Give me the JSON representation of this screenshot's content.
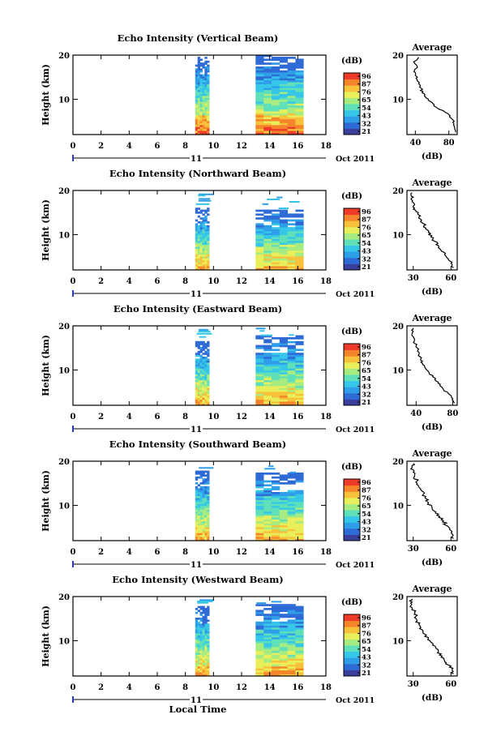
{
  "colorbar": {
    "unit_label": "(dB)",
    "palette": [
      "#3a3f9c",
      "#2f6bd6",
      "#2e9ee8",
      "#36c7e8",
      "#5fe0b8",
      "#a6ec80",
      "#e9ef5a",
      "#f7c13a",
      "#f5852a",
      "#ef3b2a"
    ]
  },
  "x_axis": {
    "ticks": [
      "0",
      "2",
      "4",
      "6",
      "8",
      "10",
      "12",
      "14",
      "16",
      "18"
    ],
    "date_label": "11",
    "month_label": "Oct 2011",
    "xlabel": "Local Time",
    "xlim": [
      0,
      18
    ]
  },
  "avg_panel_title": "Average",
  "avg_xlabel": "(dB)",
  "chart_data": [
    {
      "type": "heatmap",
      "title": "Echo Intensity (Vertical Beam)",
      "ylabel": "Height (km)",
      "yticks": [
        "10",
        "20"
      ],
      "ylim": [
        2,
        20
      ],
      "colorbar_ticks": [
        "96",
        "87",
        "76",
        "65",
        "54",
        "43",
        "32",
        "21"
      ],
      "blocks": [
        {
          "x_start": 8.7,
          "x_end": 9.7,
          "top_km": 19.5
        },
        {
          "x_start": 13.0,
          "x_end": 16.4,
          "top_km": 19.8
        }
      ],
      "average": {
        "xticks": [
          "40",
          "80"
        ],
        "xlim": [
          30,
          90
        ],
        "profile": [
          [
            88,
            2.5
          ],
          [
            87,
            3.5
          ],
          [
            86,
            4.5
          ],
          [
            84,
            5.5
          ],
          [
            80,
            6.5
          ],
          [
            72,
            7.5
          ],
          [
            62,
            8.5
          ],
          [
            58,
            9.5
          ],
          [
            52,
            10.5
          ],
          [
            48,
            11.5
          ],
          [
            47,
            12.5
          ],
          [
            44,
            13.5
          ],
          [
            42,
            14.5
          ],
          [
            40,
            15.5
          ],
          [
            39,
            16.5
          ],
          [
            42,
            17.5
          ],
          [
            38,
            18.5
          ],
          [
            44,
            19.5
          ]
        ]
      }
    },
    {
      "type": "heatmap",
      "title": "Echo Intensity (Northward Beam)",
      "ylabel": "Height (km)",
      "yticks": [
        "10",
        "20"
      ],
      "ylim": [
        2,
        20
      ],
      "colorbar_ticks": [
        "96",
        "87",
        "76",
        "65",
        "54",
        "43",
        "32",
        "21"
      ],
      "blocks": [
        {
          "x_start": 8.7,
          "x_end": 9.7,
          "top_km": 16.0
        },
        {
          "x_start": 13.0,
          "x_end": 16.4,
          "top_km": 15.5
        }
      ],
      "average": {
        "xticks": [
          "30",
          "60"
        ],
        "xlim": [
          25,
          65
        ],
        "profile": [
          [
            62,
            2.5
          ],
          [
            60,
            3.5
          ],
          [
            58,
            4.5
          ],
          [
            55,
            5.5
          ],
          [
            52,
            6.5
          ],
          [
            50,
            7.5
          ],
          [
            47,
            8.5
          ],
          [
            44,
            9.5
          ],
          [
            42,
            10.5
          ],
          [
            40,
            11.5
          ],
          [
            38,
            12.5
          ],
          [
            36,
            13.5
          ],
          [
            34,
            14.5
          ],
          [
            32,
            15.5
          ],
          [
            30,
            16.5
          ],
          [
            29,
            17.5
          ],
          [
            30,
            18.5
          ],
          [
            29,
            19.5
          ]
        ]
      }
    },
    {
      "type": "heatmap",
      "title": "Echo Intensity (Eastward Beam)",
      "ylabel": "Height (km)",
      "yticks": [
        "10",
        "20"
      ],
      "ylim": [
        2,
        20
      ],
      "colorbar_ticks": [
        "96",
        "87",
        "76",
        "65",
        "54",
        "43",
        "32",
        "21"
      ],
      "blocks": [
        {
          "x_start": 8.7,
          "x_end": 9.7,
          "top_km": 16.5
        },
        {
          "x_start": 13.0,
          "x_end": 16.4,
          "top_km": 17.5
        }
      ],
      "average": {
        "xticks": [
          "40",
          "80"
        ],
        "xlim": [
          30,
          85
        ],
        "profile": [
          [
            82,
            2.5
          ],
          [
            80,
            3.5
          ],
          [
            76,
            4.5
          ],
          [
            70,
            5.5
          ],
          [
            66,
            6.5
          ],
          [
            62,
            7.5
          ],
          [
            58,
            8.5
          ],
          [
            54,
            9.5
          ],
          [
            50,
            10.5
          ],
          [
            47,
            11.5
          ],
          [
            45,
            12.5
          ],
          [
            43,
            13.5
          ],
          [
            42,
            14.5
          ],
          [
            40,
            15.5
          ],
          [
            38,
            16.5
          ],
          [
            37,
            17.5
          ],
          [
            36,
            18.5
          ],
          [
            37,
            19.5
          ]
        ]
      }
    },
    {
      "type": "heatmap",
      "title": "Echo Intensity (Southward Beam)",
      "ylabel": "Height (km)",
      "yticks": [
        "10",
        "20"
      ],
      "ylim": [
        2,
        20
      ],
      "colorbar_ticks": [
        "96",
        "87",
        "76",
        "65",
        "54",
        "43",
        "32",
        "21"
      ],
      "blocks": [
        {
          "x_start": 8.7,
          "x_end": 9.7,
          "top_km": 17.5
        },
        {
          "x_start": 13.0,
          "x_end": 16.4,
          "top_km": 17.0
        }
      ],
      "average": {
        "xticks": [
          "30",
          "60"
        ],
        "xlim": [
          25,
          65
        ],
        "profile": [
          [
            62,
            2.5
          ],
          [
            61,
            3.5
          ],
          [
            59,
            4.5
          ],
          [
            56,
            5.5
          ],
          [
            54,
            6.5
          ],
          [
            51,
            7.5
          ],
          [
            48,
            8.5
          ],
          [
            45,
            9.5
          ],
          [
            42,
            10.5
          ],
          [
            40,
            11.5
          ],
          [
            38,
            12.5
          ],
          [
            36,
            13.5
          ],
          [
            34,
            14.5
          ],
          [
            33,
            15.5
          ],
          [
            31,
            16.5
          ],
          [
            30,
            17.5
          ],
          [
            29,
            18.5
          ],
          [
            30,
            19.5
          ]
        ]
      }
    },
    {
      "type": "heatmap",
      "title": "Echo Intensity (Westward Beam)",
      "ylabel": "Height (km)",
      "yticks": [
        "10",
        "20"
      ],
      "ylim": [
        2,
        20
      ],
      "colorbar_ticks": [
        "96",
        "87",
        "76",
        "65",
        "54",
        "43",
        "32",
        "21"
      ],
      "blocks": [
        {
          "x_start": 8.7,
          "x_end": 9.7,
          "top_km": 17.5
        },
        {
          "x_start": 13.0,
          "x_end": 16.4,
          "top_km": 18.0
        }
      ],
      "average": {
        "xticks": [
          "30",
          "60"
        ],
        "xlim": [
          25,
          65
        ],
        "profile": [
          [
            62,
            2.5
          ],
          [
            61,
            3.5
          ],
          [
            58,
            4.5
          ],
          [
            55,
            5.5
          ],
          [
            53,
            6.5
          ],
          [
            50,
            7.5
          ],
          [
            48,
            8.5
          ],
          [
            45,
            9.5
          ],
          [
            42,
            10.5
          ],
          [
            39,
            11.5
          ],
          [
            37,
            12.5
          ],
          [
            35,
            13.5
          ],
          [
            33,
            14.5
          ],
          [
            32,
            15.5
          ],
          [
            31,
            16.5
          ],
          [
            29,
            17.5
          ],
          [
            28,
            18.5
          ],
          [
            29,
            19.5
          ]
        ]
      }
    }
  ]
}
